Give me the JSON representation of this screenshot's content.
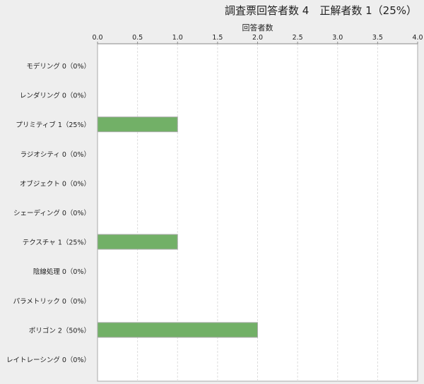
{
  "chart_data": {
    "type": "bar",
    "orientation": "horizontal",
    "title": "調査票回答者数 4　正解者数 1（25%）",
    "xlabel": "回答者数",
    "xlim": [
      0,
      4
    ],
    "ticks": [
      "0.0",
      "0.5",
      "1.0",
      "1.5",
      "2.0",
      "2.5",
      "3.0",
      "3.5",
      "4.0"
    ],
    "grid": true,
    "bar_color": "#72b067",
    "categories": [
      "モデリング 0（0%）",
      "レンダリング 0（0%）",
      "プリミティブ 1（25%）",
      "ラジオシティ 0（0%）",
      "オブジェクト 0（0%）",
      "シェーディング 0（0%）",
      "テクスチャ 1（25%）",
      "陰線処理 0（0%）",
      "パラメトリック 0（0%）",
      "ポリゴン 2（50%）",
      "レイトレーシング 0（0%）"
    ],
    "values": [
      0,
      0,
      1,
      0,
      0,
      0,
      1,
      0,
      0,
      2,
      0
    ]
  }
}
